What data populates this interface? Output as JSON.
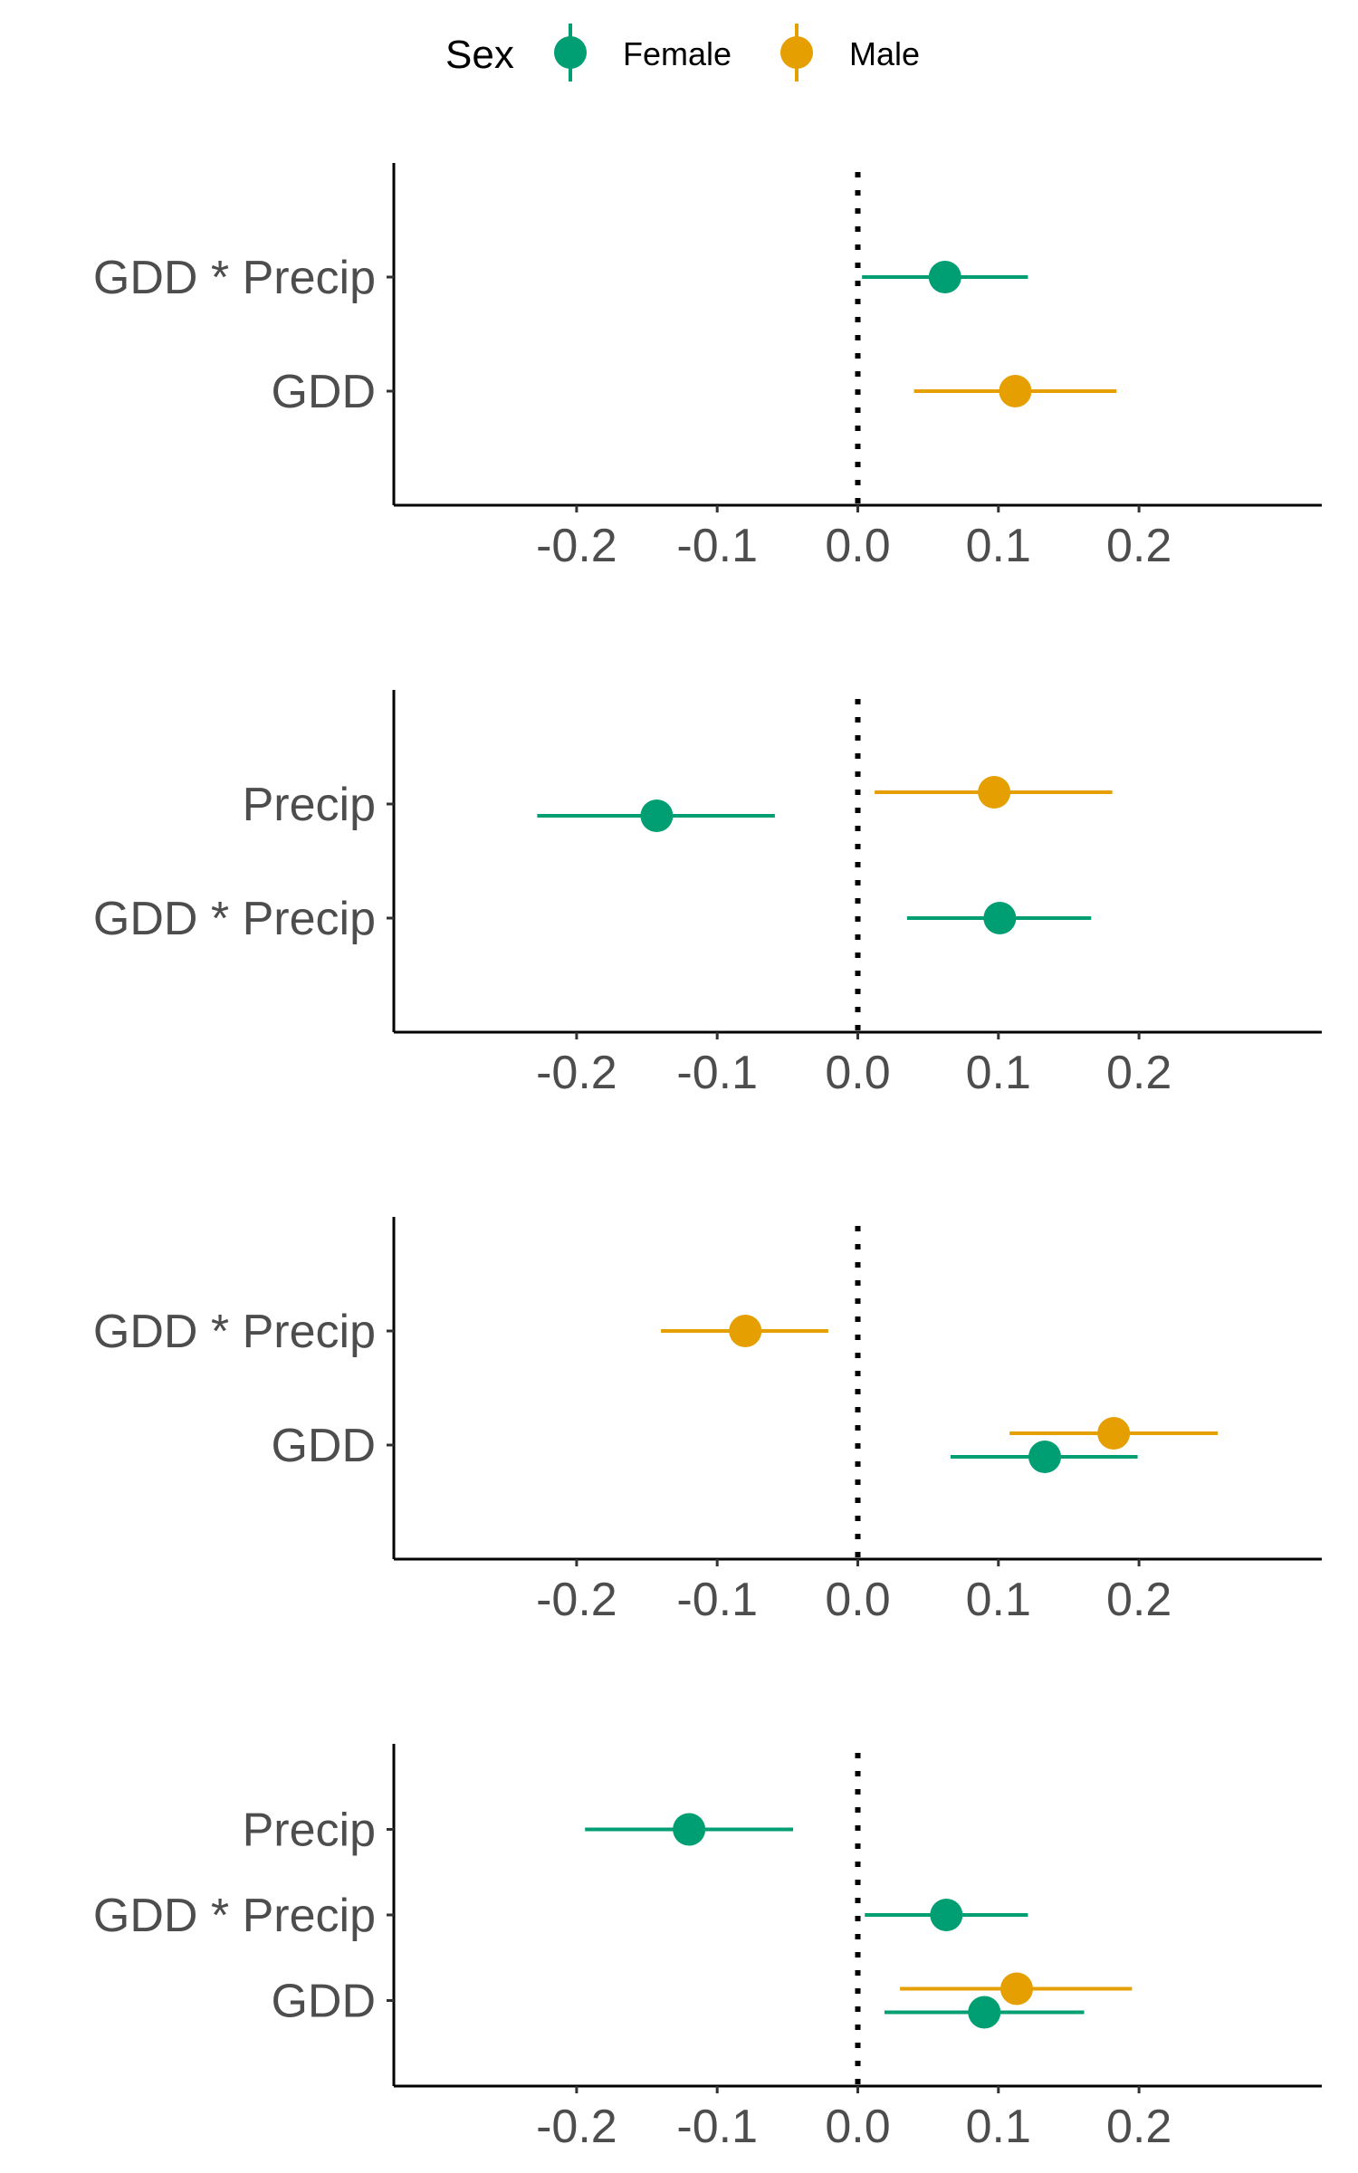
{
  "legend": {
    "title": "Sex",
    "items": [
      {
        "label": "Female",
        "color": "#009E73"
      },
      {
        "label": "Male",
        "color": "#E69F00"
      }
    ]
  },
  "chart_data": [
    {
      "type": "scatter",
      "subtype": "coefficient-plot-with-error-bars",
      "xlim": [
        -0.33,
        0.33
      ],
      "x_ticks": [
        "-0.2",
        "-0.1",
        "0.0",
        "0.1",
        "0.2"
      ],
      "x_tick_values": [
        -0.2,
        -0.1,
        0.0,
        0.1,
        0.2
      ],
      "reference_line": 0.0,
      "categories": [
        "GDD * Precip",
        "GDD"
      ],
      "series": [
        {
          "name": "Female",
          "points": [
            {
              "category": "GDD * Precip",
              "estimate": 0.062,
              "low": 0.003,
              "high": 0.121
            }
          ]
        },
        {
          "name": "Male",
          "points": [
            {
              "category": "GDD",
              "estimate": 0.112,
              "low": 0.04,
              "high": 0.184
            }
          ]
        }
      ]
    },
    {
      "type": "scatter",
      "subtype": "coefficient-plot-with-error-bars",
      "xlim": [
        -0.33,
        0.33
      ],
      "x_ticks": [
        "-0.2",
        "-0.1",
        "0.0",
        "0.1",
        "0.2"
      ],
      "x_tick_values": [
        -0.2,
        -0.1,
        0.0,
        0.1,
        0.2
      ],
      "reference_line": 0.0,
      "categories": [
        "Precip",
        "GDD * Precip"
      ],
      "series": [
        {
          "name": "Female",
          "points": [
            {
              "category": "Precip",
              "estimate": -0.143,
              "low": -0.228,
              "high": -0.059
            },
            {
              "category": "GDD * Precip",
              "estimate": 0.101,
              "low": 0.035,
              "high": 0.166
            }
          ]
        },
        {
          "name": "Male",
          "points": [
            {
              "category": "Precip",
              "estimate": 0.097,
              "low": 0.012,
              "high": 0.181
            }
          ]
        }
      ]
    },
    {
      "type": "scatter",
      "subtype": "coefficient-plot-with-error-bars",
      "xlim": [
        -0.33,
        0.33
      ],
      "x_ticks": [
        "-0.2",
        "-0.1",
        "0.0",
        "0.1",
        "0.2"
      ],
      "x_tick_values": [
        -0.2,
        -0.1,
        0.0,
        0.1,
        0.2
      ],
      "reference_line": 0.0,
      "categories": [
        "GDD * Precip",
        "GDD"
      ],
      "series": [
        {
          "name": "Female",
          "points": [
            {
              "category": "GDD",
              "estimate": 0.133,
              "low": 0.066,
              "high": 0.199
            }
          ]
        },
        {
          "name": "Male",
          "points": [
            {
              "category": "GDD * Precip",
              "estimate": -0.08,
              "low": -0.14,
              "high": -0.021
            },
            {
              "category": "GDD",
              "estimate": 0.182,
              "low": 0.108,
              "high": 0.256
            }
          ]
        }
      ]
    },
    {
      "type": "scatter",
      "subtype": "coefficient-plot-with-error-bars",
      "xlim": [
        -0.33,
        0.33
      ],
      "x_ticks": [
        "-0.2",
        "-0.1",
        "0.0",
        "0.1",
        "0.2"
      ],
      "x_tick_values": [
        -0.2,
        -0.1,
        0.0,
        0.1,
        0.2
      ],
      "reference_line": 0.0,
      "categories": [
        "Precip",
        "GDD * Precip",
        "GDD"
      ],
      "series": [
        {
          "name": "Female",
          "points": [
            {
              "category": "Precip",
              "estimate": -0.12,
              "low": -0.194,
              "high": -0.046
            },
            {
              "category": "GDD * Precip",
              "estimate": 0.063,
              "low": 0.005,
              "high": 0.121
            },
            {
              "category": "GDD",
              "estimate": 0.09,
              "low": 0.019,
              "high": 0.161
            }
          ]
        },
        {
          "name": "Male",
          "points": [
            {
              "category": "GDD",
              "estimate": 0.113,
              "low": 0.03,
              "high": 0.195
            }
          ]
        }
      ]
    }
  ]
}
